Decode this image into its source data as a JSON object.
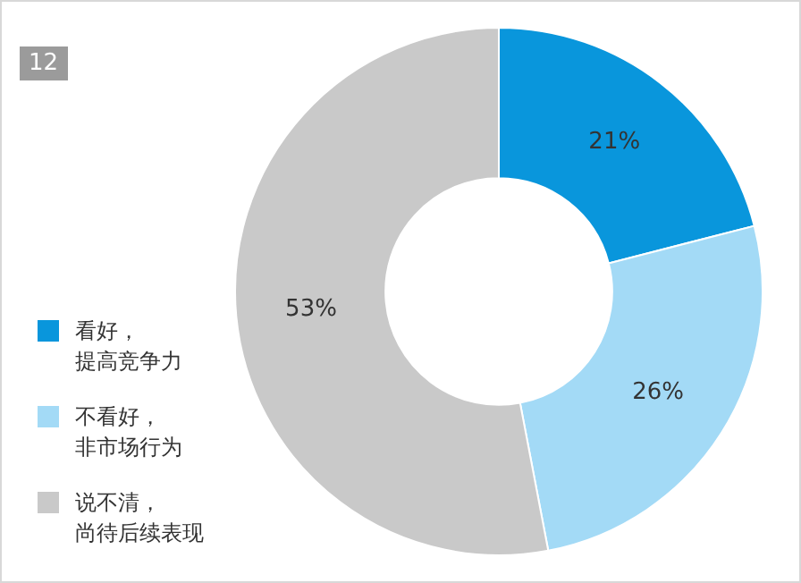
{
  "chart_data": {
    "type": "donut",
    "title": "12",
    "categories": [
      "看好，提高竞争力",
      "不看好，非市场行为",
      "说不清，尚待后续表现"
    ],
    "values": [
      21,
      26,
      53
    ],
    "colors": [
      "#0996dc",
      "#a3daf6",
      "#c9c9c9"
    ],
    "value_labels": [
      "21%",
      "26%",
      "53%"
    ],
    "legend": "bottom left"
  }
}
